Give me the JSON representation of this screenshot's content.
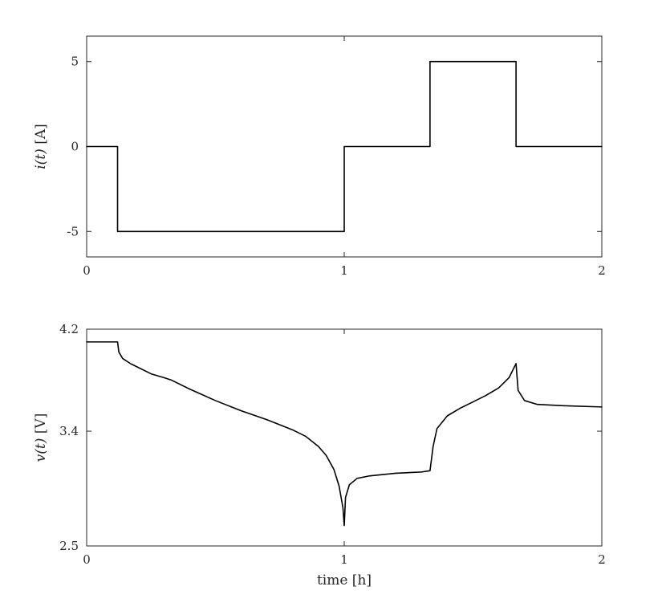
{
  "figure": {
    "background": "#ffffff",
    "axis_color": "#262626",
    "text_color": "#262626"
  },
  "chart_data": [
    {
      "type": "line",
      "name": "current-profile",
      "title": "",
      "xlabel": "",
      "ylabel_var": "i(t)",
      "ylabel_unit": "[A]",
      "xlim": [
        0,
        2
      ],
      "ylim": [
        -6.5,
        6.5
      ],
      "xticks": [
        0,
        1,
        2
      ],
      "xtick_labels": [
        "0",
        "1",
        "2"
      ],
      "yticks": [
        -5,
        0,
        5
      ],
      "ytick_labels": [
        "-5",
        "0",
        "5"
      ],
      "grid": false,
      "legend": null,
      "line_color": "#000000",
      "line_width": 1.6,
      "x": [
        0,
        0.12,
        0.12,
        1.0,
        1.0,
        1.333,
        1.333,
        1.667,
        1.667,
        2.0
      ],
      "y": [
        0,
        0,
        -5,
        -5,
        0,
        0,
        5,
        5,
        0,
        0
      ]
    },
    {
      "type": "line",
      "name": "voltage-response",
      "title": "",
      "xlabel": "time [h]",
      "ylabel_var": "v(t)",
      "ylabel_unit": "[V]",
      "xlim": [
        0,
        2
      ],
      "ylim": [
        2.5,
        4.2
      ],
      "xticks": [
        0,
        1,
        2
      ],
      "xtick_labels": [
        "0",
        "1",
        "2"
      ],
      "yticks": [
        2.5,
        3.4,
        4.2
      ],
      "ytick_labels": [
        "2.5",
        "3.4",
        "4.2"
      ],
      "grid": false,
      "legend": null,
      "line_color": "#000000",
      "line_width": 1.6,
      "x": [
        0,
        0.12,
        0.125,
        0.14,
        0.17,
        0.2,
        0.25,
        0.3,
        0.33,
        0.4,
        0.5,
        0.6,
        0.7,
        0.8,
        0.85,
        0.9,
        0.93,
        0.96,
        0.98,
        0.995,
        1.0,
        1.005,
        1.02,
        1.05,
        1.1,
        1.2,
        1.3,
        1.333,
        1.345,
        1.36,
        1.4,
        1.45,
        1.5,
        1.55,
        1.6,
        1.64,
        1.667,
        1.675,
        1.7,
        1.75,
        1.85,
        2.0
      ],
      "y": [
        4.1,
        4.1,
        4.02,
        3.97,
        3.93,
        3.9,
        3.85,
        3.82,
        3.8,
        3.73,
        3.64,
        3.56,
        3.49,
        3.41,
        3.36,
        3.28,
        3.21,
        3.1,
        2.97,
        2.8,
        2.66,
        2.88,
        2.98,
        3.03,
        3.05,
        3.07,
        3.08,
        3.09,
        3.28,
        3.42,
        3.52,
        3.58,
        3.63,
        3.68,
        3.74,
        3.82,
        3.93,
        3.72,
        3.64,
        3.61,
        3.6,
        3.59
      ]
    }
  ]
}
